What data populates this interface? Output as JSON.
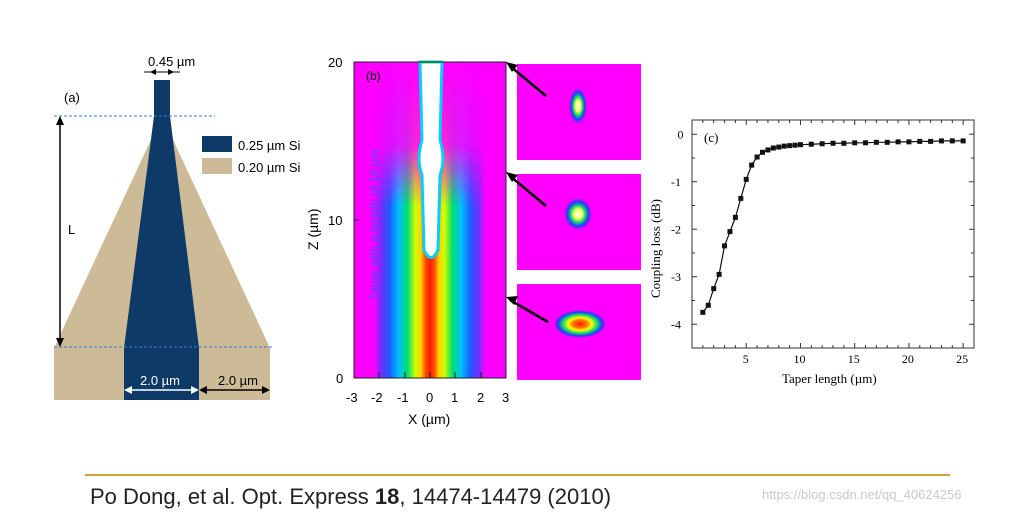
{
  "panel_a": {
    "label": "(a)",
    "top_width": "0.45 µm",
    "length_label": "L",
    "bottom_width": "2.0 µm",
    "side_width": "2.0 µm",
    "legend": [
      {
        "label": "0.25 µm Si",
        "color": "#0d3a66"
      },
      {
        "label": "0.20 µm Si",
        "color": "#cdbb98"
      }
    ]
  },
  "panel_b": {
    "label": "(b)",
    "ylabel": "Z (µm)",
    "xlabel": "X (µm)",
    "x_ticks": [
      "-3",
      "-2",
      "-1",
      "0",
      "1",
      "2",
      "3"
    ],
    "y_ticks": [
      "0",
      "10",
      "20"
    ],
    "annotation": "Taper with a length of 10 µm",
    "colors": {
      "background": "#ff00ff",
      "core": "#ff1a00"
    }
  },
  "panel_c": {
    "label": "(c)",
    "chart_data": {
      "type": "line",
      "xlabel": "Taper length (µm)",
      "ylabel": "Coupling loss (dB)",
      "xlim": [
        0,
        26
      ],
      "ylim": [
        -4.5,
        0.3
      ],
      "x_ticks": [
        "5",
        "10",
        "15",
        "20",
        "25"
      ],
      "y_ticks": [
        "0",
        "-1",
        "-2",
        "-3",
        "-4"
      ],
      "x": [
        1,
        1.5,
        2,
        2.5,
        3,
        3.5,
        4,
        4.5,
        5,
        5.5,
        6,
        6.5,
        7,
        7.5,
        8,
        8.5,
        9,
        9.5,
        10,
        11,
        12,
        13,
        14,
        15,
        16,
        17,
        18,
        19,
        20,
        21,
        22,
        23,
        24,
        25
      ],
      "y": [
        -3.75,
        -3.6,
        -3.25,
        -2.95,
        -2.35,
        -2.05,
        -1.75,
        -1.35,
        -0.95,
        -0.65,
        -0.48,
        -0.38,
        -0.33,
        -0.29,
        -0.27,
        -0.25,
        -0.24,
        -0.23,
        -0.22,
        -0.21,
        -0.2,
        -0.19,
        -0.19,
        -0.18,
        -0.18,
        -0.17,
        -0.17,
        -0.16,
        -0.16,
        -0.15,
        -0.15,
        -0.14,
        -0.14,
        -0.14
      ],
      "line_color": "#111111"
    }
  },
  "citation": {
    "authors": "Po Dong,  et al. Opt. Express ",
    "volume": "18",
    "pages": ", 14474-14479 (2010)"
  },
  "watermark": "https://blog.csdn.net/qq_40624256"
}
